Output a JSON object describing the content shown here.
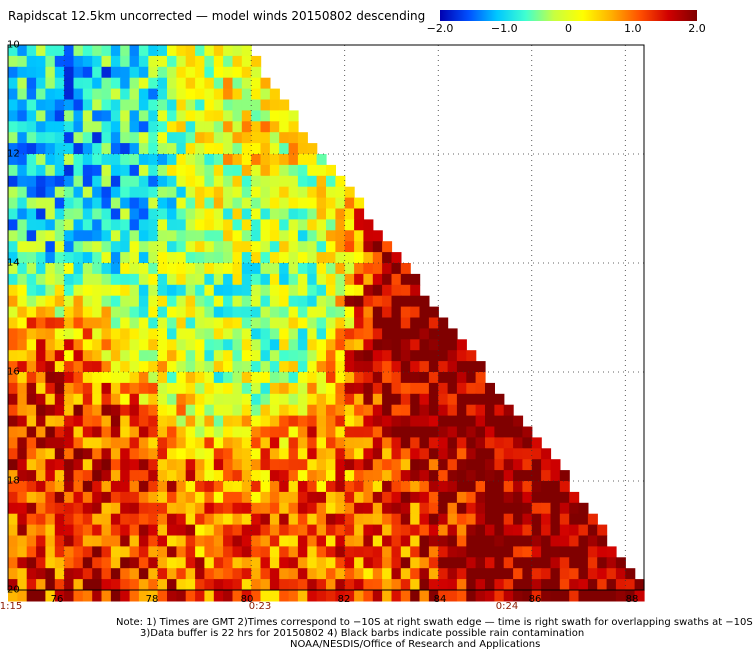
{
  "title": "Rapidscat 12.5km uncorrected — model winds 20150802 descending",
  "colorbar": {
    "ticks": [
      {
        "label": "−2.0",
        "value": -2.0
      },
      {
        "label": "−1.0",
        "value": -1.0
      },
      {
        "label": "0",
        "value": 0.0
      },
      {
        "label": "1.0",
        "value": 1.0
      },
      {
        "label": "2.0",
        "value": 2.0
      }
    ],
    "min": -2.0,
    "max": 2.0,
    "colors": [
      "#0000b0",
      "#0050ff",
      "#00c8ff",
      "#40ffd0",
      "#c8ff40",
      "#ffff00",
      "#ffb000",
      "#ff5000",
      "#d00000",
      "#800000"
    ]
  },
  "axes": {
    "lat_labels": [
      "10",
      "12",
      "14",
      "16",
      "18",
      "20"
    ],
    "lon_labels": [
      "76",
      "78",
      "80",
      "82",
      "84",
      "86",
      "88"
    ],
    "time_labels": [
      "1:15",
      "0:23",
      "0:24"
    ]
  },
  "chart_data": {
    "type": "heatmap",
    "variable": "Rapidscat 12.5km uncorrected — model winds difference",
    "date": "20150802",
    "pass": "descending",
    "lat_range_south_deg": [
      10,
      20
    ],
    "lon_range_east_deg": [
      74.8,
      88.4
    ],
    "value_range": [
      -2.0,
      2.0
    ],
    "grid": true,
    "swath_right_edge": [
      {
        "lat": 10.0,
        "lon": 79.8
      },
      {
        "lat": 11.0,
        "lon": 80.6
      },
      {
        "lat": 12.0,
        "lon": 81.4
      },
      {
        "lat": 13.0,
        "lon": 82.3
      },
      {
        "lat": 14.0,
        "lon": 83.2
      },
      {
        "lat": 15.0,
        "lon": 84.0
      },
      {
        "lat": 16.0,
        "lon": 84.9
      },
      {
        "lat": 17.0,
        "lon": 85.8
      },
      {
        "lat": 18.0,
        "lon": 86.7
      },
      {
        "lat": 19.0,
        "lon": 87.5
      },
      {
        "lat": 20.0,
        "lon": 88.3
      }
    ],
    "value_regions": [
      {
        "desc": "northwest",
        "lat": [
          10,
          14
        ],
        "lon": [
          74.8,
          78.5
        ],
        "typical_value": -1.0
      },
      {
        "desc": "north center",
        "lat": [
          10,
          13
        ],
        "lon": [
          78.5,
          80
        ],
        "typical_value": 0.3
      },
      {
        "desc": "center",
        "lat": [
          13.5,
          16.5
        ],
        "lon": [
          77.5,
          80.5
        ],
        "typical_value": -0.3
      },
      {
        "desc": "southwest",
        "lat": [
          15.5,
          20
        ],
        "lon": [
          74.8,
          78
        ],
        "typical_value": 1.3
      },
      {
        "desc": "right swath edge",
        "lat": [
          14,
          20
        ],
        "lon": [
          84,
          88.3
        ],
        "typical_value": 2.0
      },
      {
        "desc": "south center",
        "lat": [
          17.5,
          20
        ],
        "lon": [
          79,
          84
        ],
        "typical_value": 1.0
      }
    ]
  },
  "notes": [
    "Note: 1) Times are GMT 2)Times correspond to −10S at right swath edge — time is right swath for overlapping swaths at −10S",
    "3)Data buffer is 22 hrs for 20150802 4) Black barbs indicate possible rain contamination",
    "NOAA/NESDIS/Office of Research and Applications"
  ]
}
